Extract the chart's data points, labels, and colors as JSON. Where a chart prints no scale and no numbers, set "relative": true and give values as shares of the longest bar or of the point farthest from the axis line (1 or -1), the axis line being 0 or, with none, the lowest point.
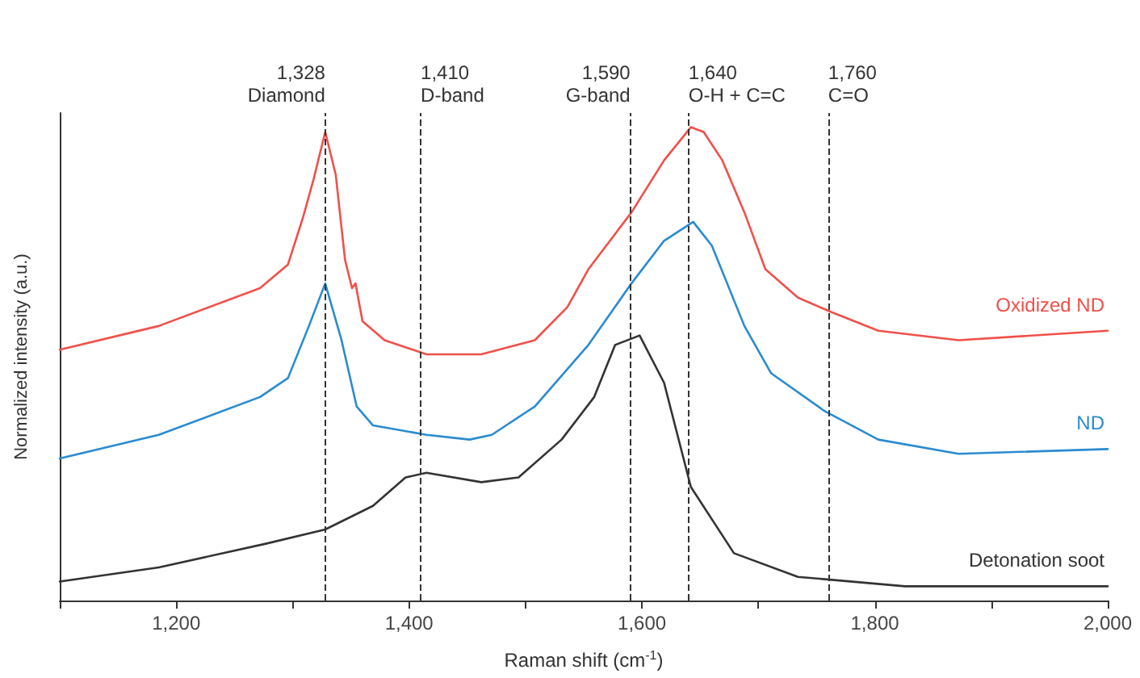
{
  "chart_data": {
    "type": "line",
    "relative": true,
    "xlabel": "Raman shift (cm$^{-1}$)",
    "ylabel": "Normalized intensity (a.u.)",
    "xlim": [
      1100,
      2000
    ],
    "xticks": [
      {
        "value": 1100,
        "label": null
      },
      {
        "value": 1200,
        "label": "1,200"
      },
      {
        "value": 1300,
        "label": null
      },
      {
        "value": 1400,
        "label": "1,400"
      },
      {
        "value": 1500,
        "label": null
      },
      {
        "value": 1600,
        "label": "1,600"
      },
      {
        "value": 1700,
        "label": null
      },
      {
        "value": 1800,
        "label": "1,800"
      },
      {
        "value": 1900,
        "label": null
      },
      {
        "value": 2000,
        "label": "2,000"
      }
    ],
    "grid": false,
    "legend": false,
    "marker": "none",
    "line_style": "solid",
    "series": [
      {
        "name": "Oxidized ND",
        "color": "#f0504a",
        "x": [
          1100,
          1185,
          1272,
          1296,
          1309,
          1318,
          1328,
          1337,
          1345,
          1351,
          1354,
          1360,
          1379,
          1415,
          1462,
          1508,
          1536,
          1554,
          1591,
          1619,
          1642,
          1653,
          1669,
          1688,
          1706,
          1734,
          1762,
          1803,
          1872,
          2000
        ],
        "values": [
          0.53,
          0.58,
          0.66,
          0.71,
          0.81,
          0.89,
          0.99,
          0.9,
          0.72,
          0.66,
          0.67,
          0.59,
          0.55,
          0.52,
          0.52,
          0.55,
          0.62,
          0.7,
          0.82,
          0.93,
          1,
          0.99,
          0.93,
          0.82,
          0.7,
          0.64,
          0.61,
          0.57,
          0.55,
          0.57
        ]
      },
      {
        "name": "ND",
        "color": "#2a8bd0",
        "x": [
          1100,
          1185,
          1272,
          1296,
          1314,
          1328,
          1342,
          1355,
          1369,
          1415,
          1452,
          1471,
          1508,
          1554,
          1591,
          1619,
          1644,
          1660,
          1688,
          1711,
          1757,
          1803,
          1872,
          2000
        ],
        "values": [
          0.3,
          0.35,
          0.43,
          0.47,
          0.58,
          0.67,
          0.55,
          0.41,
          0.37,
          0.35,
          0.34,
          0.35,
          0.41,
          0.54,
          0.67,
          0.76,
          0.8,
          0.75,
          0.58,
          0.48,
          0.4,
          0.34,
          0.31,
          0.32
        ]
      },
      {
        "name": "Detonation soot",
        "color": "#333333",
        "x": [
          1100,
          1185,
          1277,
          1328,
          1369,
          1397,
          1415,
          1462,
          1494,
          1531,
          1559,
          1577,
          1598,
          1619,
          1642,
          1679,
          1734,
          1826,
          2000
        ],
        "values": [
          0.04,
          0.07,
          0.12,
          0.15,
          0.2,
          0.26,
          0.27,
          0.25,
          0.26,
          0.34,
          0.43,
          0.54,
          0.56,
          0.46,
          0.24,
          0.1,
          0.05,
          0.03,
          0.03
        ]
      }
    ],
    "ref_lines": [
      {
        "axis": "x",
        "value": 1328,
        "label": "1,328\nDiamond",
        "line_style": "dashed",
        "color": "#333333"
      },
      {
        "axis": "x",
        "value": 1410,
        "label": "1,410\nD-band",
        "line_style": "dashed",
        "color": "#333333"
      },
      {
        "axis": "x",
        "value": 1590,
        "label": "1,590\nG-band",
        "line_style": "dashed",
        "color": "#333333"
      },
      {
        "axis": "x",
        "value": 1640,
        "label": "1,640\nO-H + C=C",
        "line_style": "dashed",
        "color": "#333333"
      },
      {
        "axis": "x",
        "value": 1760,
        "label": "1,760\nC=O",
        "line_style": "dashed",
        "color": "#333333"
      }
    ]
  }
}
